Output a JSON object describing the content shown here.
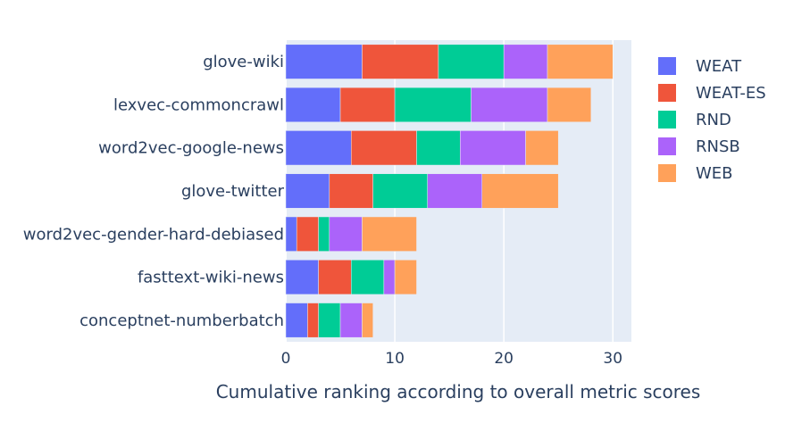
{
  "chart_data": {
    "type": "bar",
    "orientation": "horizontal",
    "stacked": true,
    "title": "",
    "xlabel": "Cumulative ranking according to overall metric scores",
    "ylabel": "",
    "xlim": [
      0,
      31.7
    ],
    "xticks": [
      0,
      10,
      20,
      30
    ],
    "grid": true,
    "legend_position": "right",
    "categories": [
      "glove-wiki",
      "lexvec-commoncrawl",
      "word2vec-google-news",
      "glove-twitter",
      "word2vec-gender-hard-debiased",
      "fasttext-wiki-news",
      "conceptnet-numberbatch"
    ],
    "series": [
      {
        "name": "WEAT",
        "color": "#636efa",
        "values": [
          7,
          5,
          6,
          4,
          1,
          3,
          2
        ]
      },
      {
        "name": "WEAT-ES",
        "color": "#ef553b",
        "values": [
          7,
          5,
          6,
          4,
          2,
          3,
          1
        ]
      },
      {
        "name": "RND",
        "color": "#00cc96",
        "values": [
          6,
          7,
          4,
          5,
          1,
          3,
          2
        ]
      },
      {
        "name": "RNSB",
        "color": "#ab63fa",
        "values": [
          4,
          7,
          6,
          5,
          3,
          1,
          2
        ]
      },
      {
        "name": "WEB",
        "color": "#ffa15a",
        "values": [
          6,
          4,
          3,
          7,
          5,
          2,
          1
        ]
      }
    ]
  }
}
